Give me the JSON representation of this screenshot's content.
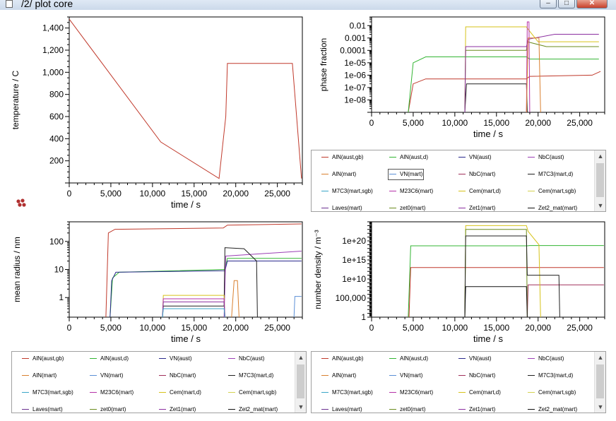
{
  "window": {
    "title": "/2/ plot core",
    "minimize_glyph": "–",
    "maximize_glyph": "□",
    "close_glyph": "✕"
  },
  "colors": {
    "AlN(aust,gb)": "#c0392b",
    "AlN(aust,d)": "#33b533",
    "VN(aust)": "#2a2a8c",
    "NbC(aust)": "#9b3fb5",
    "AlN(mart)": "#d98030",
    "VN(mart)": "#5b8fd6",
    "NbC(mart)": "#a0305a",
    "M7C3(mart,d)": "#202020",
    "M7C3(mart,sgb)": "#3aa6c8",
    "M23C6(mart)": "#b531a8",
    "Cem(mart,d)": "#d6c21a",
    "Cem(mart,sgb)": "#d4d250",
    "Laves(mart)": "#6a3090",
    "zet0(mart)": "#6b8c1e",
    "Zet1(mart)": "#8b2fa0",
    "Zet2_mat(mart)": "#111111"
  },
  "legend_entries": [
    "AlN(aust,gb)",
    "AlN(aust,d)",
    "VN(aust)",
    "NbC(aust)",
    "AlN(mart)",
    "VN(mart)",
    "NbC(mart)",
    "M7C3(mart,d)",
    "M7C3(mart,sgb)",
    "M23C6(mart)",
    "Cem(mart,d)",
    "Cem(mart,sgb)",
    "Laves(mart)",
    "zet0(mart)",
    "Zet1(mart)",
    "Zet2_mat(mart)"
  ],
  "legends": {
    "upper_right": {
      "highlighted": "VN(mart)"
    },
    "bottom_left": {
      "highlighted": ""
    },
    "bottom_right": {
      "highlighted": ""
    }
  },
  "chart_data": [
    {
      "type": "line",
      "xlabel": "time / s",
      "ylabel": "temperature / C",
      "xlim": [
        0,
        28000
      ],
      "ylim": [
        0,
        1500
      ],
      "xticks": [
        "0",
        "5,000",
        "10,000",
        "15,000",
        "20,000",
        "25,000"
      ],
      "yticks": [
        "200",
        "400",
        "600",
        "800",
        "1,000",
        "1,200",
        "1,400"
      ],
      "series": [
        {
          "color": "#c0392b",
          "x": [
            0,
            11000,
            18000,
            18800,
            19000,
            26800,
            27900
          ],
          "y": [
            1480,
            370,
            40,
            600,
            1080,
            1080,
            40
          ]
        }
      ]
    },
    {
      "type": "line",
      "xlabel": "time / s",
      "ylabel": "phase fraction",
      "xlim": [
        0,
        28000
      ],
      "scale_y": "log",
      "ylim": [
        1e-09,
        0.05
      ],
      "xticks": [
        "0",
        "5,000",
        "10,000",
        "15,000",
        "20,000",
        "25,000"
      ],
      "yticks": [
        "1e-08",
        "1e-07",
        "1e-06",
        "1e-05",
        "0.0001",
        "0.001",
        "0.01"
      ],
      "series": [
        {
          "name": "AlN(aust,gb)",
          "x": [
            4400,
            5000,
            6500,
            18600,
            19000,
            26500,
            27500
          ],
          "y": [
            1e-09,
            2e-07,
            5e-07,
            5e-07,
            8e-07,
            1e-06,
            2e-06
          ]
        },
        {
          "name": "AlN(aust,d)",
          "x": [
            4400,
            5000,
            6500,
            18600,
            19000,
            27300
          ],
          "y": [
            1e-09,
            1e-05,
            3e-05,
            3e-05,
            2e-05,
            2e-05
          ]
        },
        {
          "name": "M7C3(mart,d)",
          "x": [
            11200,
            11400,
            18600,
            18700
          ],
          "y": [
            1e-09,
            2e-07,
            2e-07,
            1e-09
          ]
        },
        {
          "name": "Cem(mart,d)",
          "x": [
            11200,
            11300,
            18600,
            18800,
            20000,
            27300
          ],
          "y": [
            1e-09,
            0.008,
            0.008,
            0.005,
            0.0005,
            0.0005
          ]
        },
        {
          "name": "zet0(mart)",
          "x": [
            11200,
            11300,
            18600,
            18700,
            21000,
            27300
          ],
          "y": [
            1e-09,
            0.0001,
            0.0001,
            0.0005,
            0.0002,
            0.0002
          ]
        },
        {
          "name": "Zet1(mart)",
          "x": [
            11200,
            11300,
            18600,
            18800,
            22000,
            27300
          ],
          "y": [
            1e-09,
            0.0002,
            0.0002,
            0.0008,
            0.002,
            0.002
          ]
        },
        {
          "name": "M23C6(mart)",
          "x": [
            18600,
            18700,
            18900,
            19000
          ],
          "y": [
            1e-09,
            0.02,
            0.02,
            1e-09
          ]
        },
        {
          "name": "AlN(mart)",
          "x": [
            18600,
            18800,
            20100,
            20300
          ],
          "y": [
            1e-09,
            0.001,
            0.001,
            1e-09
          ]
        }
      ]
    },
    {
      "type": "line",
      "xlabel": "time / s",
      "ylabel": "mean radius / nm",
      "xlim": [
        0,
        28000
      ],
      "scale_y": "log",
      "ylim": [
        0.2,
        500
      ],
      "xticks": [
        "0",
        "5,000",
        "10,000",
        "15,000",
        "20,000",
        "25,000"
      ],
      "yticks": [
        "1",
        "10",
        "100"
      ],
      "series": [
        {
          "name": "AlN(aust,gb)",
          "x": [
            4400,
            4700,
            5500,
            18500,
            19000,
            27900
          ],
          "y": [
            0.2,
            200,
            270,
            300,
            380,
            420
          ]
        },
        {
          "name": "AlN(aust,d)",
          "x": [
            4900,
            5200,
            6000,
            18700,
            19000,
            27900
          ],
          "y": [
            0.2,
            5,
            8,
            10,
            25,
            25
          ]
        },
        {
          "name": "VN(aust)",
          "x": [
            4900,
            5100,
            5600,
            18700,
            19000,
            27900
          ],
          "y": [
            0.2,
            4,
            8,
            9,
            20,
            20
          ]
        },
        {
          "name": "NbC(aust)",
          "x": [
            18600,
            18800,
            27900
          ],
          "y": [
            0.2,
            30,
            45
          ]
        },
        {
          "name": "M7C3(mart,d)",
          "x": [
            11200,
            11300,
            18600,
            18700,
            21000,
            22500,
            22600
          ],
          "y": [
            0.2,
            0.5,
            0.5,
            60,
            55,
            20,
            0.2
          ]
        },
        {
          "name": "AlN(mart)",
          "x": [
            19500,
            19800,
            20200,
            20400
          ],
          "y": [
            0.2,
            4,
            4,
            0.2
          ]
        },
        {
          "name": "Cem(mart,d)",
          "x": [
            11200,
            11300,
            18600,
            18700
          ],
          "y": [
            0.2,
            1.2,
            1.2,
            0.2
          ]
        },
        {
          "name": "M23C6(mart)",
          "x": [
            11200,
            11300,
            18600,
            18700
          ],
          "y": [
            0.2,
            0.9,
            0.9,
            0.2
          ]
        },
        {
          "name": "Zet1(mart)",
          "x": [
            11200,
            11300,
            18600,
            18700
          ],
          "y": [
            0.2,
            0.7,
            0.7,
            0.2
          ]
        },
        {
          "name": "M7C3(mart,sgb)",
          "x": [
            11200,
            11300,
            18600,
            18700
          ],
          "y": [
            0.2,
            0.4,
            0.4,
            0.2
          ]
        },
        {
          "name": "VN(mart)",
          "x": [
            27000,
            27100,
            27900
          ],
          "y": [
            0.2,
            1.1,
            1.1
          ]
        }
      ]
    },
    {
      "type": "line",
      "xlabel": "time / s",
      "ylabel": "number density / m^-3",
      "xlim": [
        0,
        28000
      ],
      "scale_y": "log",
      "ylim": [
        1,
        1e+25
      ],
      "xticks": [
        "0",
        "5,000",
        "10,000",
        "15,000",
        "20,000",
        "25,000"
      ],
      "yticks": [
        "1",
        "100,000",
        "1e+10",
        "1e+15",
        "1e+20"
      ],
      "series": [
        {
          "name": "AlN(aust,d)",
          "x": [
            4400,
            4700,
            5500,
            18700,
            19000,
            27900
          ],
          "y": [
            1,
            5e+18,
            5e+18,
            5e+18,
            6e+18,
            6e+18
          ]
        },
        {
          "name": "AlN(aust,gb)",
          "x": [
            4500,
            4700,
            27900
          ],
          "y": [
            1,
            10000000000000.0,
            10000000000000.0
          ]
        },
        {
          "name": "NbC(mart)",
          "x": [
            18700,
            18800,
            27900
          ],
          "y": [
            1,
            300000000.0,
            300000000.0
          ]
        },
        {
          "name": "Cem(mart,d)",
          "x": [
            11200,
            11300,
            18600,
            18800,
            20100,
            20300
          ],
          "y": [
            1,
            1e+24,
            1e+24,
            3e+22,
            1e+19,
            1
          ]
        },
        {
          "name": "zet0(mart)",
          "x": [
            11200,
            11300,
            18600,
            18700
          ],
          "y": [
            1,
            1e+23,
            1e+23,
            1
          ]
        },
        {
          "name": "M7C3(mart,d)",
          "x": [
            11200,
            11300,
            18600,
            18700,
            22500,
            22600
          ],
          "y": [
            1,
            2e+21,
            2e+21,
            100000000000.0,
            100000000000.0,
            1
          ]
        },
        {
          "name": "Zet2_mat(mart)",
          "x": [
            11200,
            11300,
            18600,
            18700
          ],
          "y": [
            1,
            100000000.0,
            100000000.0,
            1
          ]
        }
      ]
    }
  ]
}
